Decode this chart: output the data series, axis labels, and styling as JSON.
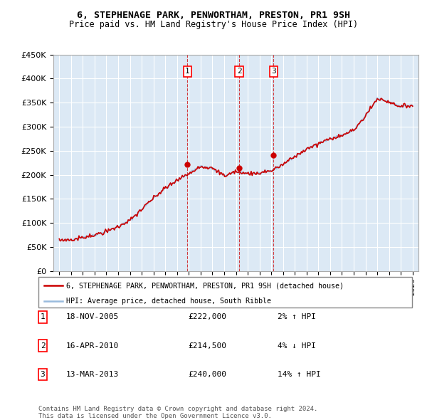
{
  "title": "6, STEPHENAGE PARK, PENWORTHAM, PRESTON, PR1 9SH",
  "subtitle": "Price paid vs. HM Land Registry's House Price Index (HPI)",
  "ylim": [
    0,
    450000
  ],
  "yticks": [
    0,
    50000,
    100000,
    150000,
    200000,
    250000,
    300000,
    350000,
    400000,
    450000
  ],
  "ytick_labels": [
    "£0",
    "£50K",
    "£100K",
    "£150K",
    "£200K",
    "£250K",
    "£300K",
    "£350K",
    "£400K",
    "£450K"
  ],
  "xlim_start": 1994.5,
  "xlim_end": 2025.5,
  "plot_bg": "#dce9f5",
  "red_color": "#cc0000",
  "blue_color": "#99bbdd",
  "sale_dates": [
    2005.88,
    2010.29,
    2013.2
  ],
  "sale_prices": [
    222000,
    214500,
    240000
  ],
  "sale_labels": [
    "1",
    "2",
    "3"
  ],
  "sale_date_strs": [
    "18-NOV-2005",
    "16-APR-2010",
    "13-MAR-2013"
  ],
  "sale_price_strs": [
    "£222,000",
    "£214,500",
    "£240,000"
  ],
  "sale_hpi_strs": [
    "2% ↑ HPI",
    "4% ↓ HPI",
    "14% ↑ HPI"
  ],
  "legend_line1": "6, STEPHENAGE PARK, PENWORTHAM, PRESTON, PR1 9SH (detached house)",
  "legend_line2": "HPI: Average price, detached house, South Ribble",
  "footer1": "Contains HM Land Registry data © Crown copyright and database right 2024.",
  "footer2": "This data is licensed under the Open Government Licence v3.0."
}
